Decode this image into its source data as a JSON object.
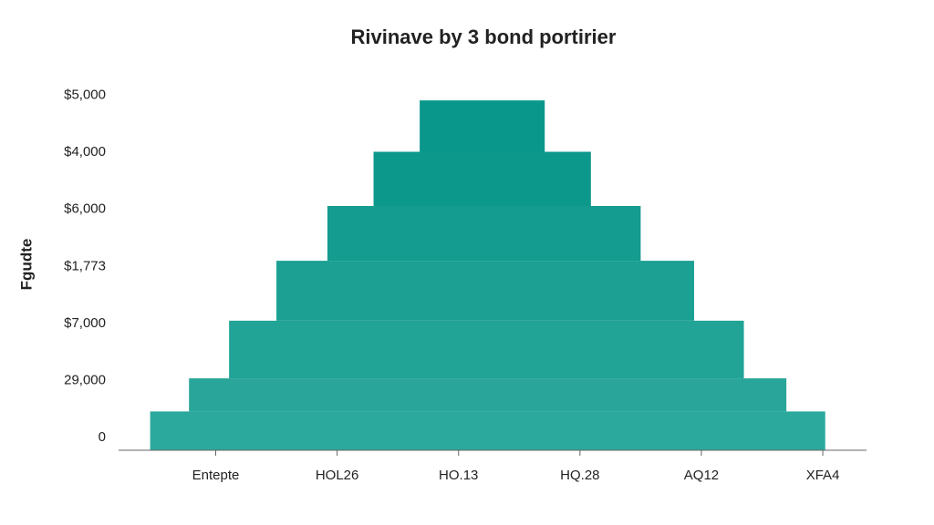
{
  "chart_data": {
    "type": "pyramid",
    "title": "Rivinave by 3 bond portirier",
    "y_label": "Fgudte",
    "categories": [
      "Entepte",
      "HOL26",
      "HO.13",
      "HQ.28",
      "AQ12",
      "XFA4"
    ],
    "xticks": [
      0,
      1,
      2,
      3,
      4,
      5
    ],
    "xlim": [
      -0.8,
      5.36
    ],
    "ylim": [
      -0.22,
      6.2
    ],
    "yticks": [
      0,
      {
        "value": 1,
        "label": "29,000"
      },
      {
        "value": 2,
        "label": "$7,000"
      },
      {
        "value": 3,
        "label": "$1,773"
      },
      {
        "value": 4,
        "label": "$6,000"
      },
      {
        "value": 5,
        "label": "$4,000"
      },
      {
        "value": 6,
        "label": "$5,000"
      }
    ],
    "levels": [
      {
        "left": -0.54,
        "right": 5.02,
        "bottom": -0.22,
        "top": 0.46,
        "color": "#2ba99c"
      },
      {
        "left": -0.22,
        "right": 4.7,
        "bottom": 0.46,
        "top": 1.04,
        "color": "#29a699"
      },
      {
        "left": 0.11,
        "right": 4.35,
        "bottom": 1.04,
        "top": 2.05,
        "color": "#21a396"
      },
      {
        "left": 0.5,
        "right": 3.94,
        "bottom": 2.05,
        "top": 3.1,
        "color": "#1ba093"
      },
      {
        "left": 0.92,
        "right": 3.5,
        "bottom": 3.1,
        "top": 4.06,
        "color": "#139c8f"
      },
      {
        "left": 1.3,
        "right": 3.09,
        "bottom": 4.06,
        "top": 5.01,
        "color": "#0c998c"
      },
      {
        "left": 1.68,
        "right": 2.71,
        "bottom": 5.01,
        "top": 5.91,
        "color": "#08978a"
      }
    ]
  }
}
